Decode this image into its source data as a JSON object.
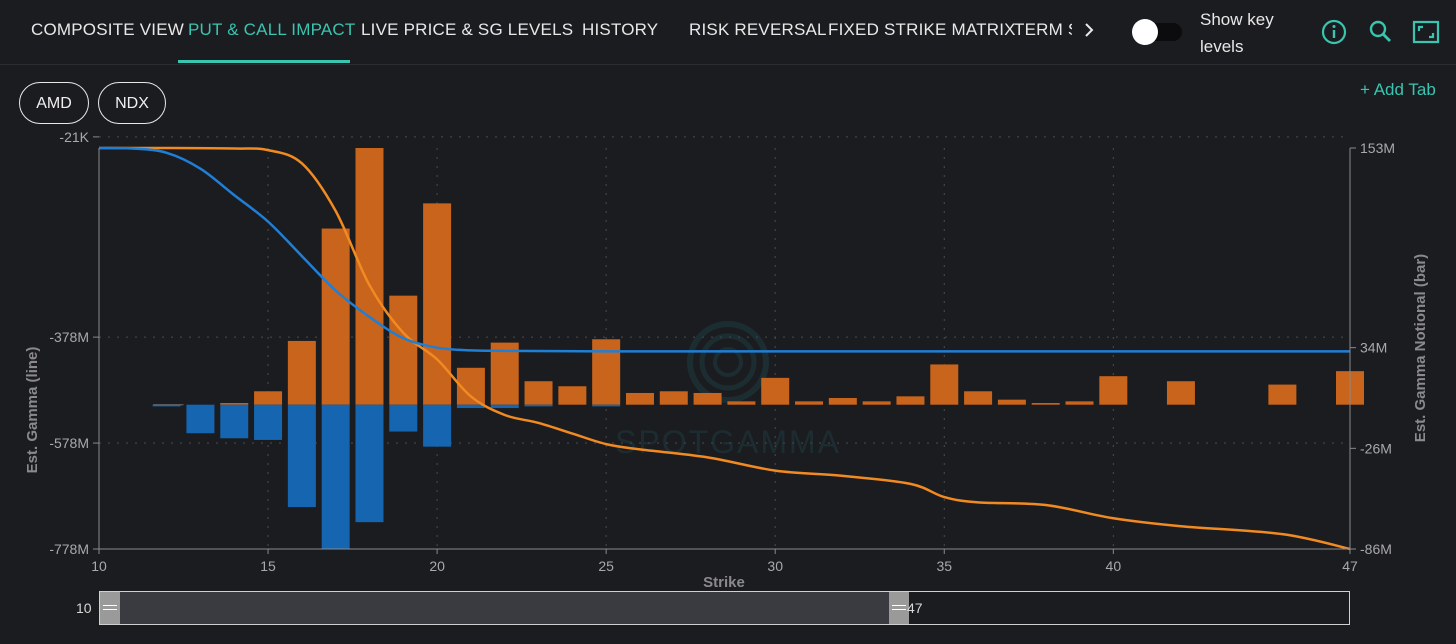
{
  "tabs": [
    {
      "label": "COMPOSITE VIEW",
      "active": false
    },
    {
      "label": "PUT & CALL IMPACT",
      "active": true
    },
    {
      "label": "LIVE PRICE & SG LEVELS",
      "active": false
    },
    {
      "label": "HISTORY",
      "active": false
    },
    {
      "label": "RISK REVERSAL",
      "active": false
    },
    {
      "label": "FIXED STRIKE MATRIX",
      "active": false
    },
    {
      "label": "TERM S",
      "active": false
    }
  ],
  "toggle": {
    "label": "Show key levels",
    "on": false
  },
  "icons": [
    "chevron-right-icon",
    "info-icon",
    "search-icon",
    "fullscreen-icon"
  ],
  "ticker_tabs": [
    "AMD",
    "NDX"
  ],
  "add_tab_label": "+ Add Tab",
  "colors": {
    "accent": "#39c5b0",
    "call": "#c8641b",
    "put": "#1565b0",
    "call_line": "#f28a22",
    "put_line": "#1f7fd6",
    "background": "#1b1c20"
  },
  "watermark": "SPOTGAMMA",
  "chart_data": {
    "type": "bar",
    "xlabel": "Strike",
    "ylabel_left": "Est. Gamma (line)",
    "ylabel_right": "Est. Gamma Notional (bar)",
    "xlim": [
      10,
      47
    ],
    "x_ticks": [
      10,
      15,
      20,
      25,
      30,
      35,
      40,
      47
    ],
    "ylim_left": [
      -778,
      -21
    ],
    "y_ticks_left": [
      "-21K",
      "-378M",
      "-578M",
      "-778M"
    ],
    "ylim_right": [
      -86,
      153
    ],
    "y_ticks_right": [
      "153M",
      "34M",
      "-26M",
      "-86M"
    ],
    "grid": true,
    "bar_series": [
      {
        "name": "Call",
        "color": "#c8641b",
        "x": [
          12,
          13,
          14,
          15,
          16,
          17,
          18,
          19,
          20,
          21,
          22,
          23,
          24,
          25,
          26,
          27,
          28,
          29,
          30,
          31,
          32,
          33,
          34,
          35,
          36,
          37,
          38,
          39,
          40,
          42,
          45,
          47
        ],
        "values": [
          0,
          0,
          1,
          8,
          38,
          105,
          153,
          65,
          120,
          22,
          37,
          14,
          11,
          39,
          7,
          8,
          7,
          2,
          16,
          2,
          4,
          2,
          5,
          24,
          8,
          3,
          1,
          2,
          17,
          14,
          12,
          20
        ]
      },
      {
        "name": "Put",
        "color": "#1565b0",
        "x": [
          12,
          13,
          14,
          15,
          16,
          17,
          18,
          19,
          20,
          21,
          22,
          23,
          25
        ],
        "values": [
          -1,
          -17,
          -20,
          -21,
          -61,
          -86,
          -70,
          -16,
          -25,
          -2,
          -2,
          -1,
          -1
        ]
      }
    ],
    "line_series": [
      {
        "name": "Call",
        "color": "#f28a22",
        "x": [
          10,
          12,
          14,
          15,
          16,
          17,
          18,
          19,
          20,
          21,
          22,
          23,
          24,
          25,
          26,
          28,
          30,
          32,
          34,
          35,
          36,
          38,
          40,
          42,
          45,
          47
        ],
        "values": [
          -21,
          -21,
          -22,
          -25,
          -50,
          -140,
          -280,
          -370,
          -420,
          -490,
          -525,
          -540,
          -560,
          -580,
          -590,
          -605,
          -630,
          -640,
          -655,
          -680,
          -690,
          -695,
          -720,
          -735,
          -750,
          -778
        ]
      },
      {
        "name": "Put",
        "color": "#1f7fd6",
        "x": [
          10,
          11,
          12,
          13,
          14,
          15,
          16,
          17,
          18,
          19,
          20,
          21,
          22,
          25,
          30,
          35,
          40,
          47
        ],
        "values": [
          -21,
          -22,
          -30,
          -60,
          -110,
          -160,
          -225,
          -290,
          -340,
          -380,
          -398,
          -403,
          -404,
          -405,
          -405,
          -405,
          -405,
          -405
        ]
      }
    ]
  },
  "range_slider": {
    "min_label": "10",
    "max_label": "47",
    "start_fraction": 0,
    "end_fraction": 0.648
  }
}
